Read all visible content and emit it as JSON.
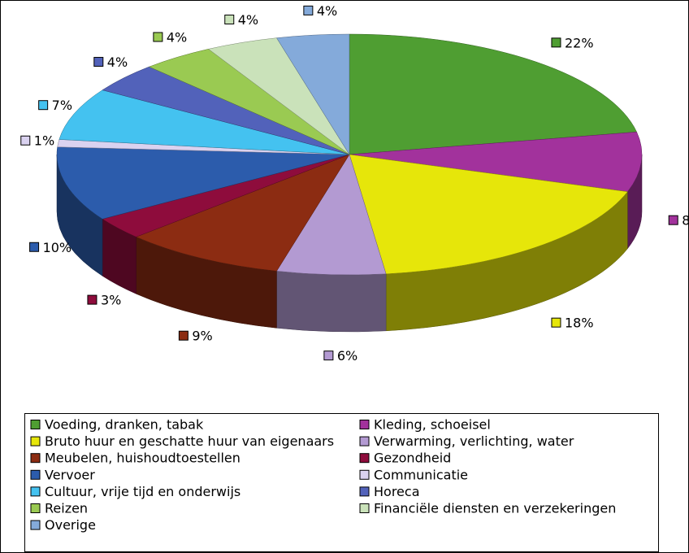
{
  "chart_data": {
    "type": "pie",
    "categories": [
      "Voeding, dranken, tabak",
      "Kleding, schoeisel",
      "Bruto huur en geschatte huur van eigenaars",
      "Verwarming, verlichting, water",
      "Meubelen, huishoudtoestellen",
      "Gezondheid",
      "Vervoer",
      "Communicatie",
      "Cultuur, vrije tijd en onderwijs",
      "Horeca",
      "Reizen",
      "Financiële diensten en verzekeringen",
      "Overige"
    ],
    "values": [
      22,
      8,
      18,
      6,
      9,
      3,
      10,
      1,
      7,
      4,
      4,
      4,
      4
    ],
    "value_labels": [
      "22%",
      "8%",
      "18%",
      "6%",
      "9%",
      "3%",
      "10%",
      "1%",
      "7%",
      "4%",
      "4%",
      "4%",
      "4%"
    ],
    "colors": [
      "#4f9e32",
      "#a2329c",
      "#e6e60a",
      "#b39ad2",
      "#8c2c12",
      "#8e0c3c",
      "#2c5cac",
      "#dad2f0",
      "#44c2f0",
      "#5262ba",
      "#9aca52",
      "#cae2ba",
      "#84aada"
    ]
  }
}
